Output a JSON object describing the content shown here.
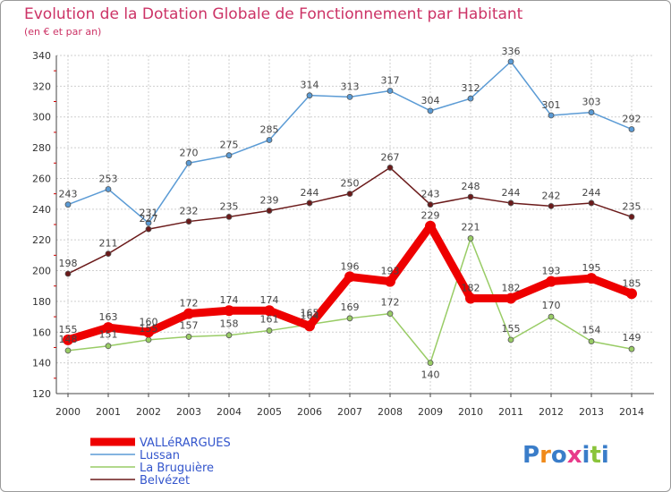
{
  "chart_data": {
    "type": "line",
    "title": "Evolution de la Dotation Globale de Fonctionnement par Habitant",
    "subtitle": "(en € et par an)",
    "x": [
      "2000",
      "2001",
      "2002",
      "2003",
      "2004",
      "2005",
      "2006",
      "2007",
      "2008",
      "2009",
      "2010",
      "2011",
      "2012",
      "2013",
      "2014"
    ],
    "ylim": [
      120,
      340
    ],
    "yticks": [
      120,
      140,
      160,
      180,
      200,
      220,
      240,
      260,
      280,
      300,
      320,
      340
    ],
    "grid": true,
    "series": [
      {
        "name": "Lussan",
        "color": "#5b9bd5",
        "values": [
          243,
          253,
          231,
          270,
          275,
          285,
          314,
          313,
          317,
          304,
          312,
          336,
          301,
          303,
          292
        ]
      },
      {
        "name": "Belvézet",
        "color": "#6b1a1a",
        "values": [
          198,
          211,
          227,
          232,
          235,
          239,
          244,
          250,
          267,
          243,
          248,
          244,
          242,
          244,
          235
        ]
      },
      {
        "name": "La Bruguière",
        "color": "#99cc66",
        "values": [
          148,
          151,
          155,
          157,
          158,
          161,
          165,
          169,
          172,
          140,
          221,
          155,
          170,
          154,
          149
        ]
      },
      {
        "name": "VALLéRARGUES",
        "color": "#ee0000",
        "values": [
          155,
          163,
          160,
          172,
          174,
          174,
          164,
          196,
          193,
          229,
          182,
          182,
          193,
          195,
          185
        ]
      }
    ],
    "legend": [
      "VALLéRARGUES",
      "Lussan",
      "La Bruguière",
      "Belvézet"
    ],
    "legend_position": "bottom-left"
  },
  "logo": {
    "text": "Proxiti"
  }
}
